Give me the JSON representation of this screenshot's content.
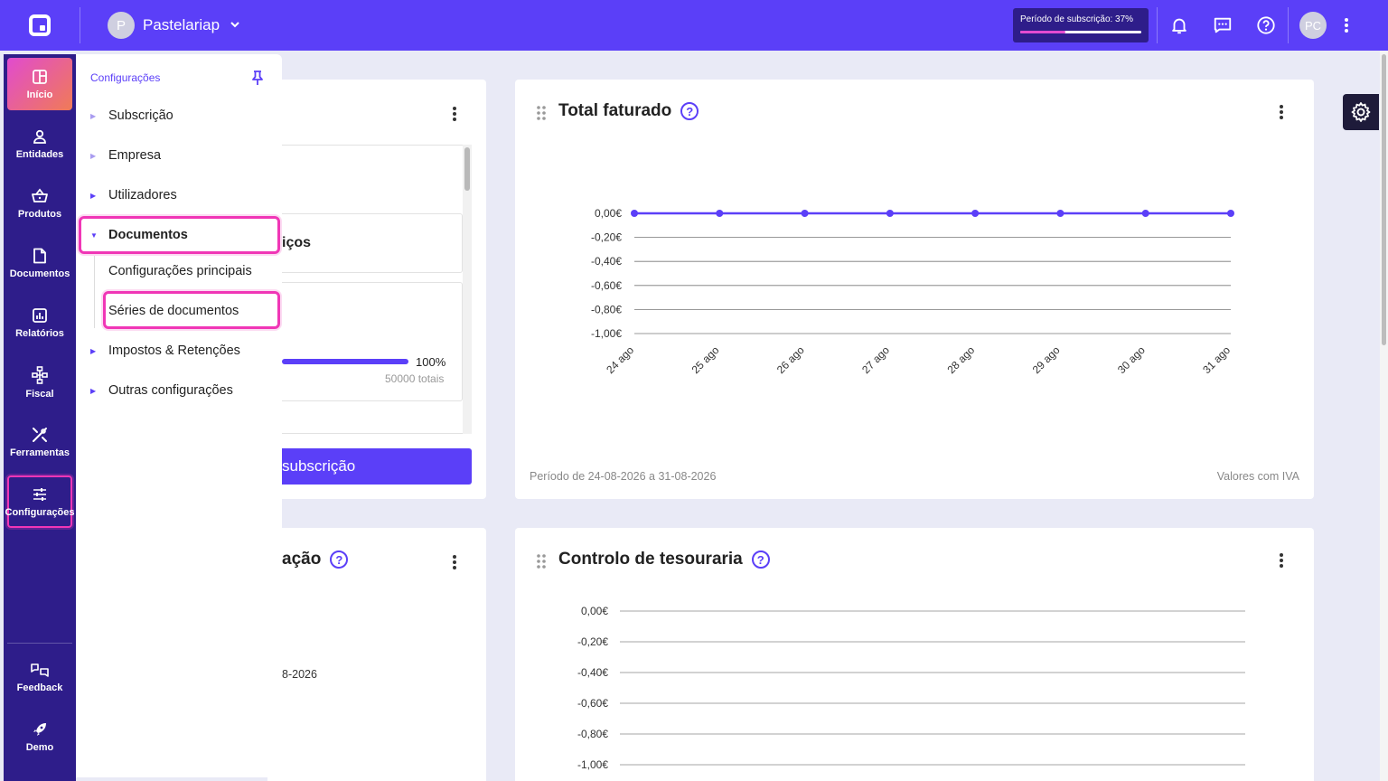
{
  "topbar": {
    "company_initial": "P",
    "company_name": "Pastelariap",
    "subscription_label": "Período de subscrição: 37%",
    "subscription_percent": 37,
    "user_initials": "PC"
  },
  "nav": {
    "items": [
      {
        "label": "Início",
        "icon": "dashboard-icon"
      },
      {
        "label": "Entidades",
        "icon": "person-icon"
      },
      {
        "label": "Produtos",
        "icon": "basket-icon"
      },
      {
        "label": "Documentos",
        "icon": "document-icon"
      },
      {
        "label": "Relatórios",
        "icon": "chart-icon"
      },
      {
        "label": "Fiscal",
        "icon": "hierarchy-icon"
      },
      {
        "label": "Ferramentas",
        "icon": "tools-icon"
      },
      {
        "label": "Configurações",
        "icon": "sliders-icon"
      },
      {
        "label": "Feedback",
        "icon": "feedback-icon"
      },
      {
        "label": "Demo",
        "icon": "rocket-icon"
      }
    ]
  },
  "settings": {
    "title": "Configurações",
    "items": [
      {
        "label": "Subscrição"
      },
      {
        "label": "Empresa"
      },
      {
        "label": "Utilizadores"
      },
      {
        "label": "Documentos"
      },
      {
        "label": "Impostos & Retenções"
      },
      {
        "label": "Outras configurações"
      }
    ],
    "sub_items": [
      {
        "label": "Configurações principais"
      },
      {
        "label": "Séries de documentos"
      }
    ]
  },
  "left_card": {
    "partial_heading": "iços",
    "progress_percent_label": "100%",
    "totals_label": "50000 totais",
    "button_label": "subscrição"
  },
  "left_card_2": {
    "partial_title": "ação",
    "partial_date": "8-2026"
  },
  "total_card": {
    "title": "Total faturado",
    "period": "Período de 24-08-2026 a 31-08-2026",
    "vat_note": "Valores com IVA"
  },
  "treasury_card": {
    "title": "Controlo de tesouraria"
  },
  "chart_data": [
    {
      "type": "line",
      "title": "Total faturado",
      "categories": [
        "24 ago",
        "25 ago",
        "26 ago",
        "27 ago",
        "28 ago",
        "29 ago",
        "30 ago",
        "31 ago"
      ],
      "values": [
        0,
        0,
        0,
        0,
        0,
        0,
        0,
        0
      ],
      "y_ticks": [
        "0,00€",
        "-0,20€",
        "-0,40€",
        "-0,60€",
        "-0,80€",
        "-1,00€"
      ],
      "ylim": [
        -1,
        0
      ],
      "grid": true,
      "color": "#5b3ff8"
    },
    {
      "type": "line",
      "title": "Controlo de tesouraria",
      "y_ticks": [
        "0,00€",
        "-0,20€",
        "-0,40€",
        "-0,60€",
        "-0,80€",
        "-1,00€"
      ],
      "ylim": [
        -1,
        0
      ],
      "grid": true
    }
  ]
}
